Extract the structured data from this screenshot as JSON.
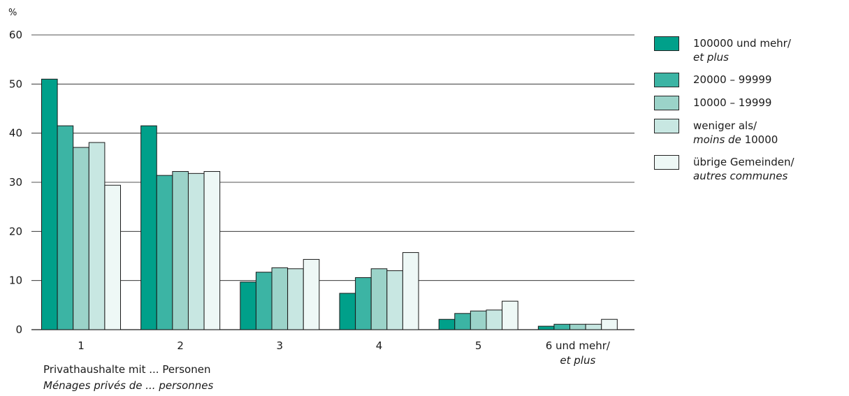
{
  "chart_data": {
    "type": "bar",
    "y_unit": "%",
    "ylim": [
      0,
      60
    ],
    "yticks": [
      0,
      10,
      20,
      30,
      40,
      50,
      60
    ],
    "grid": true,
    "legend_position": "right",
    "categories": [
      {
        "line1": "1",
        "line2": ""
      },
      {
        "line1": "2",
        "line2": ""
      },
      {
        "line1": "3",
        "line2": ""
      },
      {
        "line1": "4",
        "line2": ""
      },
      {
        "line1": "5",
        "line2": ""
      },
      {
        "line1": "6 und mehr/",
        "line2": "et plus"
      }
    ],
    "xlabel": {
      "line1": "Privathaushalte mit ... Personen",
      "line2": "Ménages privés de ... personnes"
    },
    "series": [
      {
        "name": "100000 und mehr/",
        "name_italic": "et plus",
        "name_line2": "",
        "color": "#00a08a",
        "values": [
          51.0,
          41.5,
          9.7,
          7.4,
          2.1,
          0.7
        ]
      },
      {
        "name": "20000 – 99999",
        "name_italic": "",
        "name_line2": "",
        "color": "#3cb4a4",
        "values": [
          41.5,
          31.4,
          11.7,
          10.6,
          3.3,
          1.1
        ]
      },
      {
        "name": "10000 – 19999",
        "name_italic": "",
        "name_line2": "",
        "color": "#9bd3c9",
        "values": [
          37.1,
          32.2,
          12.6,
          12.4,
          3.8,
          1.1
        ]
      },
      {
        "name": "weniger als/",
        "name_italic": "moins de",
        "name_line2": "10000",
        "color": "#c8e7e2",
        "values": [
          38.1,
          31.8,
          12.4,
          12.0,
          4.0,
          1.1
        ]
      },
      {
        "name": "übrige Gemeinden/",
        "name_italic": "autres communes",
        "name_line2": "",
        "color": "#eef8f6",
        "values": [
          29.4,
          32.2,
          14.3,
          15.7,
          5.8,
          2.1
        ]
      }
    ]
  }
}
